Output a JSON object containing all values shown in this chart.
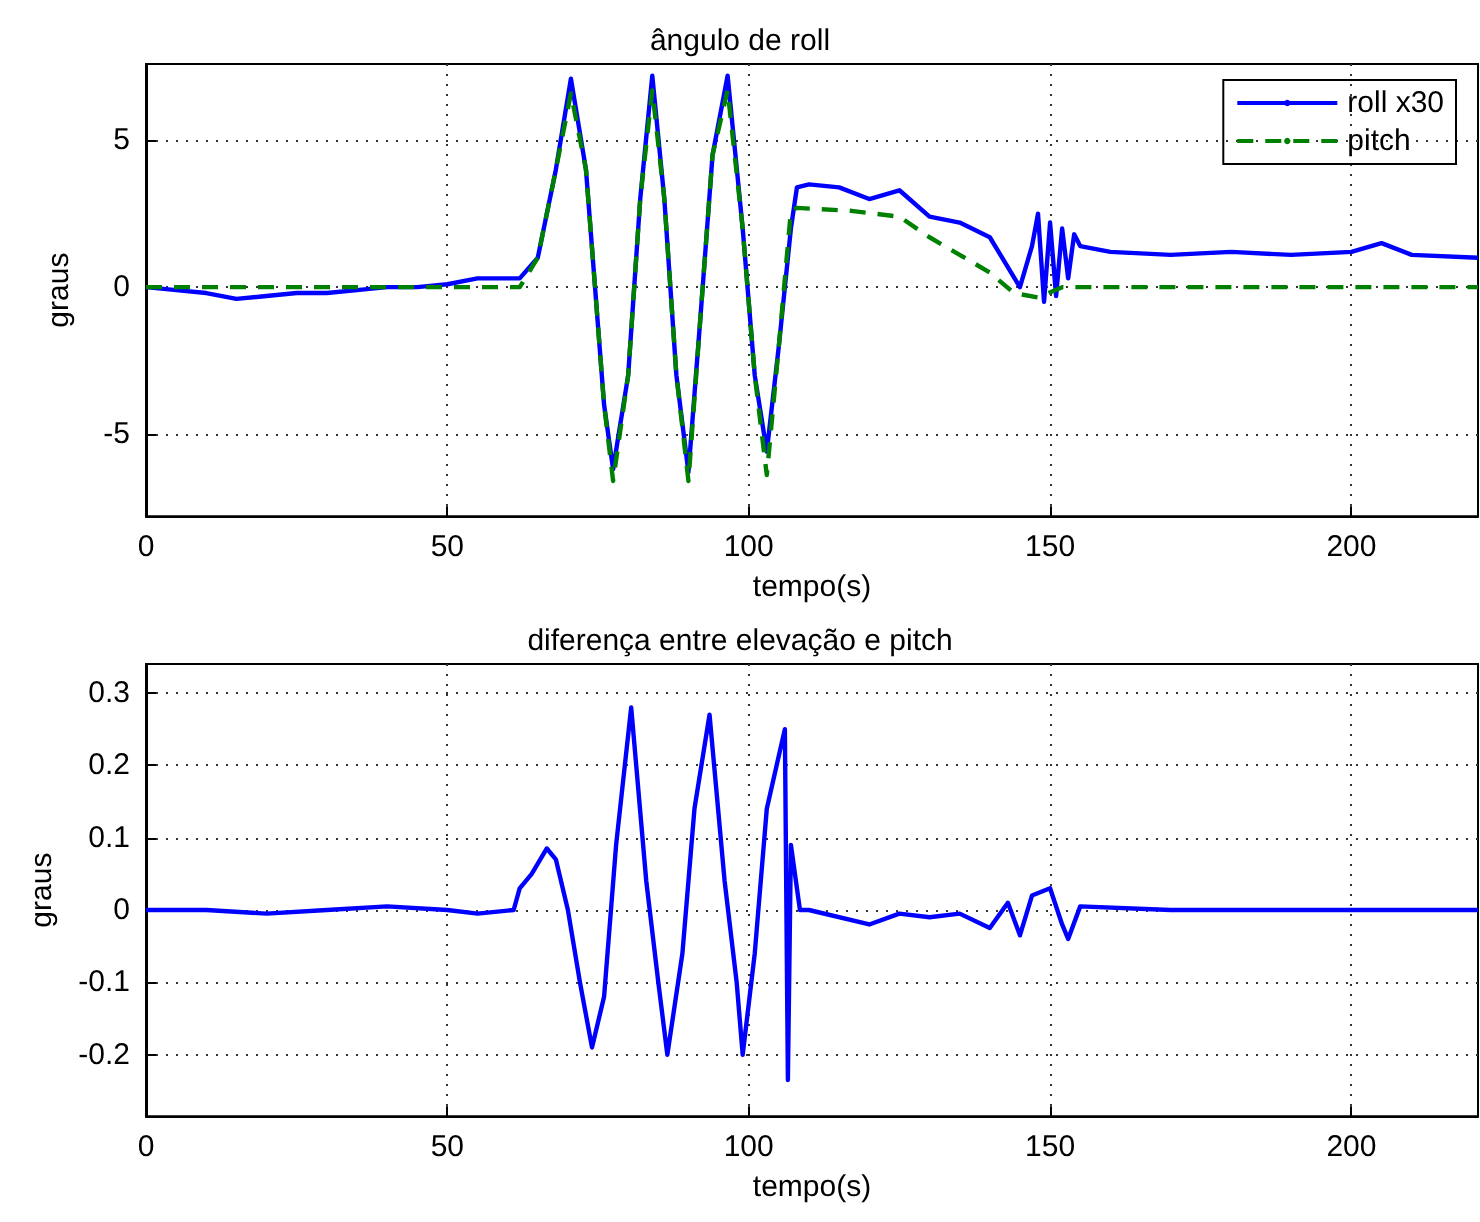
{
  "chart_data": [
    {
      "type": "line",
      "title": "ângulo de roll",
      "xlabel": "tempo(s)",
      "ylabel": "graus",
      "xlim": [
        0,
        221
      ],
      "xticks": [
        0,
        50,
        100,
        150,
        200
      ],
      "ylim": [
        -7.8,
        7.6
      ],
      "yticks": [
        -5,
        0,
        5
      ],
      "grid": true,
      "legend": "top right",
      "series": [
        {
          "name": "roll x30",
          "color": "#0000ff",
          "line_style": "solid",
          "x": [
            0,
            5,
            10,
            15,
            20,
            25,
            30,
            35,
            40,
            45,
            50,
            55,
            62,
            65,
            68,
            70.5,
            73,
            76,
            77.5,
            80,
            82,
            84,
            86,
            88,
            90,
            92,
            94,
            96.5,
            99,
            101,
            103,
            105,
            107,
            108,
            110,
            115,
            120,
            125,
            130,
            135,
            140,
            145,
            147,
            148,
            149,
            150,
            151,
            152,
            153,
            154,
            155,
            160,
            170,
            180,
            190,
            200,
            205,
            210,
            221
          ],
          "values": [
            0,
            -0.1,
            -0.2,
            -0.4,
            -0.3,
            -0.2,
            -0.2,
            -0.1,
            0,
            0,
            0.1,
            0.3,
            0.3,
            1,
            4,
            7.1,
            4,
            -4,
            -6.2,
            -3,
            3,
            7.2,
            3,
            -3,
            -6.3,
            -1,
            4.5,
            7.2,
            2,
            -3,
            -5.6,
            -2,
            2,
            3.4,
            3.5,
            3.4,
            3,
            3.3,
            2.4,
            2.2,
            1.7,
            0,
            1.4,
            2.5,
            -0.5,
            2.2,
            -0.3,
            2,
            0.3,
            1.8,
            1.4,
            1.2,
            1.1,
            1.2,
            1.1,
            1.2,
            1.5,
            1.1,
            1
          ]
        },
        {
          "name": "pitch",
          "color": "#008000",
          "line_style": "dashed",
          "x": [
            0,
            62,
            65,
            68,
            70.5,
            73,
            76,
            77.5,
            80,
            82,
            84,
            86,
            88,
            90,
            92,
            94,
            96.5,
            99,
            101,
            103,
            105,
            107,
            108,
            117,
            125,
            130,
            135,
            140,
            144,
            148,
            152,
            221
          ],
          "values": [
            0,
            0,
            1,
            4,
            6.6,
            4,
            -4,
            -6.6,
            -3,
            3,
            6.7,
            3,
            -3,
            -6.6,
            -1,
            4.5,
            6.7,
            2,
            -3,
            -6.4,
            -2,
            2.6,
            2.7,
            2.6,
            2.4,
            1.7,
            1.1,
            0.5,
            -0.2,
            -0.35,
            0,
            0
          ]
        }
      ]
    },
    {
      "type": "line",
      "title": "diferença entre elevação e pitch",
      "xlabel": "tempo(s)",
      "ylabel": "graus",
      "xlim": [
        0,
        221
      ],
      "xticks": [
        0,
        50,
        100,
        150,
        200
      ],
      "ylim": [
        -0.285,
        0.34
      ],
      "yticks": [
        -0.2,
        -0.1,
        0,
        0.1,
        0.2,
        0.3
      ],
      "grid": true,
      "legend": false,
      "series": [
        {
          "color": "#0000ff",
          "line_style": "solid",
          "x": [
            0,
            10,
            20,
            30,
            40,
            50,
            55,
            61,
            62,
            64,
            66.5,
            68,
            70,
            72,
            74,
            76,
            78,
            80.5,
            83,
            85,
            86.5,
            89,
            91,
            93.5,
            96,
            98,
            99,
            101,
            103,
            106,
            106.5,
            107,
            108.5,
            110,
            120,
            125,
            130,
            135,
            140,
            143,
            145,
            147,
            150,
            152,
            153,
            155,
            170,
            221
          ],
          "values": [
            0,
            0,
            -0.005,
            0,
            0.005,
            0,
            -0.005,
            0,
            0.03,
            0.05,
            0.085,
            0.07,
            0,
            -0.1,
            -0.19,
            -0.12,
            0.09,
            0.28,
            0.04,
            -0.1,
            -0.2,
            -0.06,
            0.14,
            0.27,
            0.04,
            -0.1,
            -0.2,
            -0.06,
            0.14,
            0.25,
            -0.235,
            0.09,
            0,
            0,
            -0.02,
            -0.005,
            -0.01,
            -0.005,
            -0.025,
            0.01,
            -0.035,
            0.02,
            0.03,
            -0.02,
            -0.04,
            0.005,
            0,
            0
          ]
        }
      ]
    }
  ]
}
